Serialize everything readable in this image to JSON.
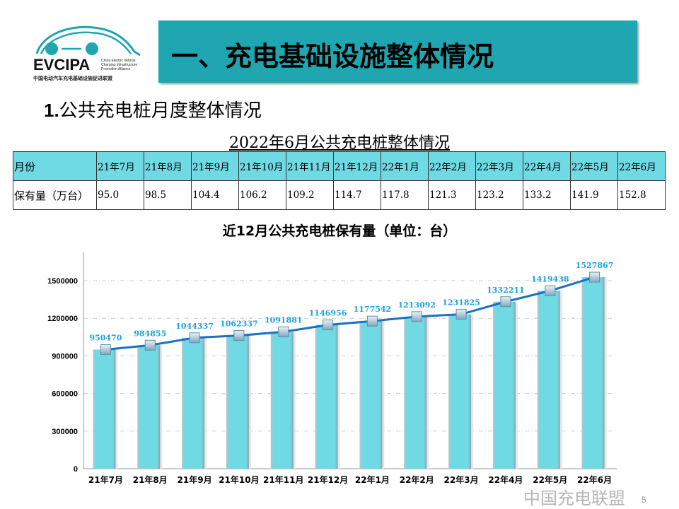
{
  "logo": {
    "name": "EVCIPA",
    "subtitle_en": "China Electric Vehicle Charging Infrastructure Promotion Alliance",
    "subtitle_cn": "中国电动汽车充电基础设施促进联盟"
  },
  "header": {
    "title": "一、充电基础设施整体情况",
    "banner_color": "#1fa6b0"
  },
  "section": {
    "number": "1.",
    "title": "公共充电桩月度整体情况"
  },
  "table": {
    "title": "2022年6月公共充电桩整体情况",
    "header_color": "#6fd9e4",
    "row_labels": [
      "月份",
      "保有量（万台）"
    ],
    "months": [
      "21年7月",
      "21年8月",
      "21年9月",
      "21年10月",
      "21年11月",
      "21年12月",
      "22年1月",
      "22年2月",
      "22年3月",
      "22年4月",
      "22年5月",
      "22年6月"
    ],
    "values": [
      "95.0",
      "98.5",
      "104.4",
      "106.2",
      "109.2",
      "114.7",
      "117.8",
      "121.3",
      "123.2",
      "133.2",
      "141.9",
      "152.8"
    ]
  },
  "chart_data": {
    "type": "bar+line",
    "title": "近12月公共充电桩保有量（单位：台）",
    "categories": [
      "21年7月",
      "21年8月",
      "21年9月",
      "21年10月",
      "21年11月",
      "21年12月",
      "22年1月",
      "22年2月",
      "22年3月",
      "22年4月",
      "22年5月",
      "22年6月"
    ],
    "values": [
      950470,
      984855,
      1044337,
      1062337,
      1091881,
      1146956,
      1177542,
      1213092,
      1231825,
      1332211,
      1419438,
      1527867
    ],
    "ylim": [
      0,
      1500000
    ],
    "yticks": [
      0,
      300000,
      600000,
      900000,
      1200000,
      1500000
    ],
    "grid": true,
    "bar_color": "#6fd9e4",
    "line_color": "#1a72c0",
    "label_color": "#1aa3e0"
  },
  "watermark": "中国充电联盟",
  "page_number": "5"
}
